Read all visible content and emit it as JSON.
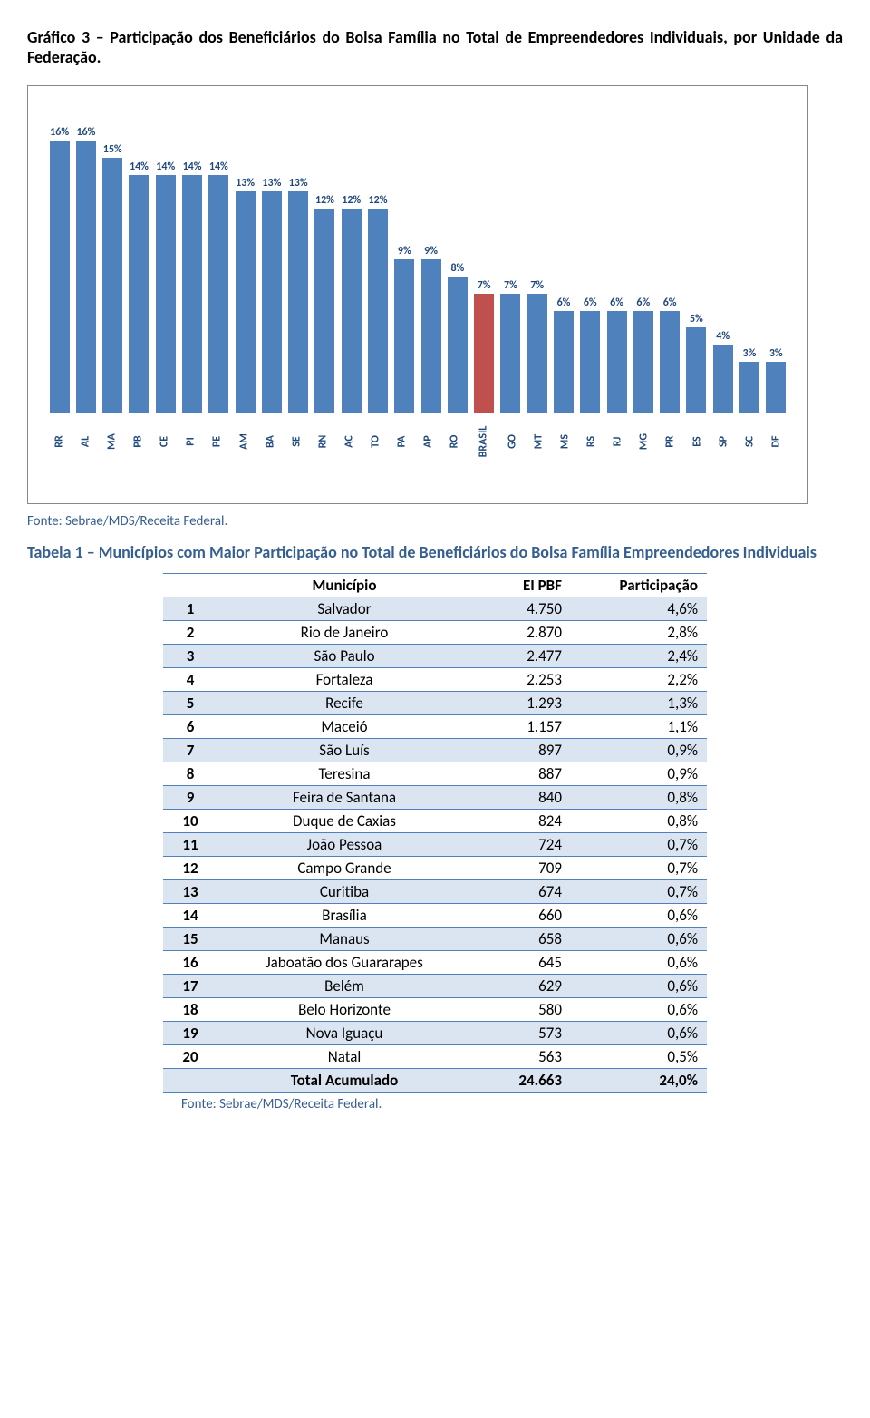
{
  "title": "Gráfico 3 – Participação dos Beneficiários do Bolsa Família no Total de Empreendedores Individuais, por Unidade da Federação.",
  "chart": {
    "type": "bar",
    "ymax": 16,
    "bar_color": "#4f81bd",
    "highlight_color": "#c0504d",
    "label_color": "#1f497d",
    "border_color": "#888888",
    "categories": [
      "RR",
      "AL",
      "MA",
      "PB",
      "CE",
      "PI",
      "PE",
      "AM",
      "BA",
      "SE",
      "RN",
      "AC",
      "TO",
      "PA",
      "AP",
      "RO",
      "BRASIL",
      "GO",
      "MT",
      "MS",
      "RS",
      "RJ",
      "MG",
      "PR",
      "ES",
      "SP",
      "SC",
      "DF"
    ],
    "values": [
      16,
      16,
      15,
      14,
      14,
      14,
      14,
      13,
      13,
      13,
      12,
      12,
      12,
      9,
      9,
      8,
      7,
      7,
      7,
      6,
      6,
      6,
      6,
      6,
      5,
      4,
      3,
      3
    ],
    "highlight_index": 16
  },
  "source_text": "Fonte: Sebrae/MDS/Receita Federal.",
  "table_title": "Tabela 1 – Municípios com Maior Participação no Total de Beneficiários do Bolsa Família Empreendedores Individuais",
  "table": {
    "band_color": "#dbe5f1",
    "border_color": "#4f81bd",
    "headers": [
      "",
      "Município",
      "EI PBF",
      "Participação"
    ],
    "rows": [
      {
        "rank": "1",
        "mun": "Salvador",
        "ei": "4.750",
        "part": "4,6%"
      },
      {
        "rank": "2",
        "mun": "Rio de Janeiro",
        "ei": "2.870",
        "part": "2,8%"
      },
      {
        "rank": "3",
        "mun": "São Paulo",
        "ei": "2.477",
        "part": "2,4%"
      },
      {
        "rank": "4",
        "mun": "Fortaleza",
        "ei": "2.253",
        "part": "2,2%"
      },
      {
        "rank": "5",
        "mun": "Recife",
        "ei": "1.293",
        "part": "1,3%"
      },
      {
        "rank": "6",
        "mun": "Maceió",
        "ei": "1.157",
        "part": "1,1%"
      },
      {
        "rank": "7",
        "mun": "São Luís",
        "ei": "897",
        "part": "0,9%"
      },
      {
        "rank": "8",
        "mun": "Teresina",
        "ei": "887",
        "part": "0,9%"
      },
      {
        "rank": "9",
        "mun": "Feira de Santana",
        "ei": "840",
        "part": "0,8%"
      },
      {
        "rank": "10",
        "mun": "Duque de Caxias",
        "ei": "824",
        "part": "0,8%"
      },
      {
        "rank": "11",
        "mun": "João Pessoa",
        "ei": "724",
        "part": "0,7%"
      },
      {
        "rank": "12",
        "mun": "Campo Grande",
        "ei": "709",
        "part": "0,7%"
      },
      {
        "rank": "13",
        "mun": "Curitiba",
        "ei": "674",
        "part": "0,7%"
      },
      {
        "rank": "14",
        "mun": "Brasília",
        "ei": "660",
        "part": "0,6%"
      },
      {
        "rank": "15",
        "mun": "Manaus",
        "ei": "658",
        "part": "0,6%"
      },
      {
        "rank": "16",
        "mun": "Jaboatão dos Guararapes",
        "ei": "645",
        "part": "0,6%"
      },
      {
        "rank": "17",
        "mun": "Belém",
        "ei": "629",
        "part": "0,6%"
      },
      {
        "rank": "18",
        "mun": "Belo Horizonte",
        "ei": "580",
        "part": "0,6%"
      },
      {
        "rank": "19",
        "mun": "Nova Iguaçu",
        "ei": "573",
        "part": "0,6%"
      },
      {
        "rank": "20",
        "mun": "Natal",
        "ei": "563",
        "part": "0,5%"
      }
    ],
    "total": {
      "label": "Total Acumulado",
      "ei": "24.663",
      "part": "24,0%"
    }
  },
  "footer_source": "Fonte: Sebrae/MDS/Receita Federal."
}
